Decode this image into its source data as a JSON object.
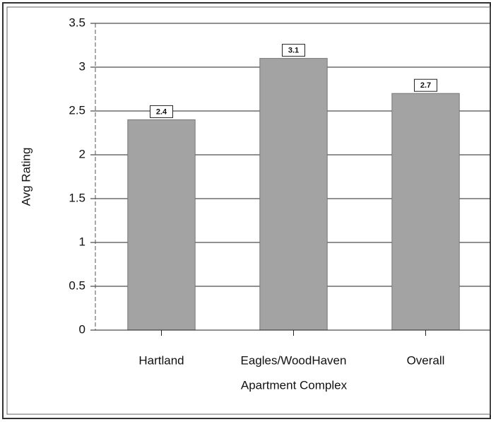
{
  "chart_data": {
    "type": "bar",
    "x_label": "Apartment Complex",
    "y_label": "Avg Rating",
    "categories": [
      "Hartland",
      "Eagles/WoodHaven",
      "Overall"
    ],
    "values": [
      2.4,
      3.1,
      2.7
    ],
    "color": "#a3a3a3",
    "ylim": [
      0,
      3.5
    ],
    "yticks": [
      0,
      0.5,
      1,
      1.5,
      2,
      2.5,
      3,
      3.5
    ],
    "grid": true
  }
}
